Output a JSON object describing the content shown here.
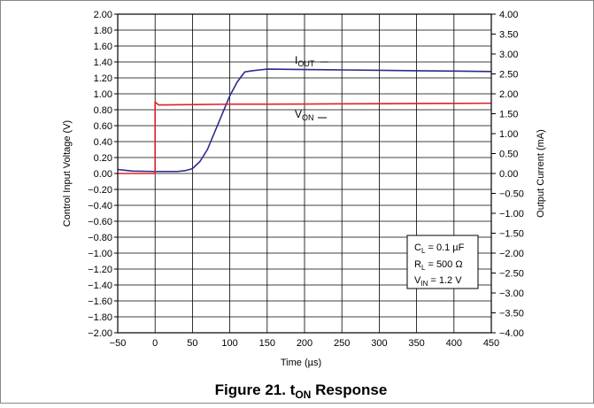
{
  "chart_data": {
    "type": "line",
    "caption": {
      "main": "Figure 21. t",
      "sub": "ON",
      "tail": " Response"
    },
    "xlabel": "Time (µs)",
    "ylabel_left": "Control Input Voltage (V)",
    "ylabel_right": "Output Current (mA)",
    "xlim": [
      -50,
      450
    ],
    "ylim_left": [
      -2.0,
      2.0
    ],
    "ylim_right": [
      -4.0,
      4.0
    ],
    "grid": true,
    "x_ticks": [
      -50,
      0,
      50,
      100,
      150,
      200,
      250,
      300,
      350,
      400,
      450
    ],
    "x_tick_labels": [
      "−50",
      "0",
      "50",
      "100",
      "150",
      "200",
      "250",
      "300",
      "350",
      "400",
      "450"
    ],
    "y_left_ticks": [
      2.0,
      1.8,
      1.6,
      1.4,
      1.2,
      1.0,
      0.8,
      0.6,
      0.4,
      0.2,
      0.0,
      -0.2,
      -0.4,
      -0.6,
      -0.8,
      -1.0,
      -1.2,
      -1.4,
      -1.6,
      -1.8,
      -2.0
    ],
    "y_left_tick_labels": [
      "2.00",
      "1.80",
      "1.60",
      "1.40",
      "1.20",
      "1.00",
      "0.80",
      "0.60",
      "0.40",
      "0.20",
      "0.00",
      "−0.20",
      "−0.40",
      "−0.60",
      "−0.80",
      "−1.00",
      "−1.20",
      "−1.40",
      "−1.60",
      "−1.80",
      "−2.00"
    ],
    "y_right_ticks": [
      4.0,
      3.5,
      3.0,
      2.5,
      2.0,
      1.5,
      1.0,
      0.5,
      0.0,
      -0.5,
      -1.0,
      -1.5,
      -2.0,
      -2.5,
      -3.0,
      -3.5,
      -4.0
    ],
    "y_right_tick_labels": [
      "4.00",
      "3.50",
      "3.00",
      "2.50",
      "2.00",
      "1.50",
      "1.00",
      "0.50",
      "0.00",
      "−0.50",
      "−1.00",
      "−1.50",
      "−2.00",
      "−2.50",
      "−3.00",
      "−3.50",
      "−4.00"
    ],
    "series": [
      {
        "axis": "right",
        "color": "#2a2a8c",
        "label_main": "I",
        "label_sub": "OUT",
        "x": [
          -50,
          -40,
          -30,
          0,
          20,
          30,
          40,
          50,
          60,
          70,
          80,
          90,
          100,
          110,
          120,
          130,
          140,
          150,
          200,
          250,
          300,
          350,
          400,
          450
        ],
        "y": [
          0.1,
          0.08,
          0.06,
          0.05,
          0.05,
          0.05,
          0.07,
          0.12,
          0.3,
          0.6,
          1.05,
          1.5,
          1.95,
          2.3,
          2.55,
          2.58,
          2.6,
          2.62,
          2.61,
          2.6,
          2.59,
          2.58,
          2.57,
          2.56
        ]
      },
      {
        "axis": "left",
        "color": "#e0202a",
        "label_main": "V",
        "label_sub": "ON",
        "x": [
          -50,
          0,
          0,
          2,
          5,
          10,
          50,
          100,
          150,
          200,
          250,
          300,
          350,
          400,
          450
        ],
        "y": [
          0.0,
          0.0,
          0.9,
          0.88,
          0.86,
          0.86,
          0.865,
          0.87,
          0.87,
          0.872,
          0.874,
          0.876,
          0.878,
          0.88,
          0.882
        ]
      }
    ],
    "conditions": [
      {
        "main": "C",
        "sub": "L",
        "tail": " = 0.1 µF"
      },
      {
        "main": "R",
        "sub": "L",
        "tail": " = 500 Ω"
      },
      {
        "main": "V",
        "sub": "IN",
        "tail": " = 1.2 V"
      }
    ]
  }
}
